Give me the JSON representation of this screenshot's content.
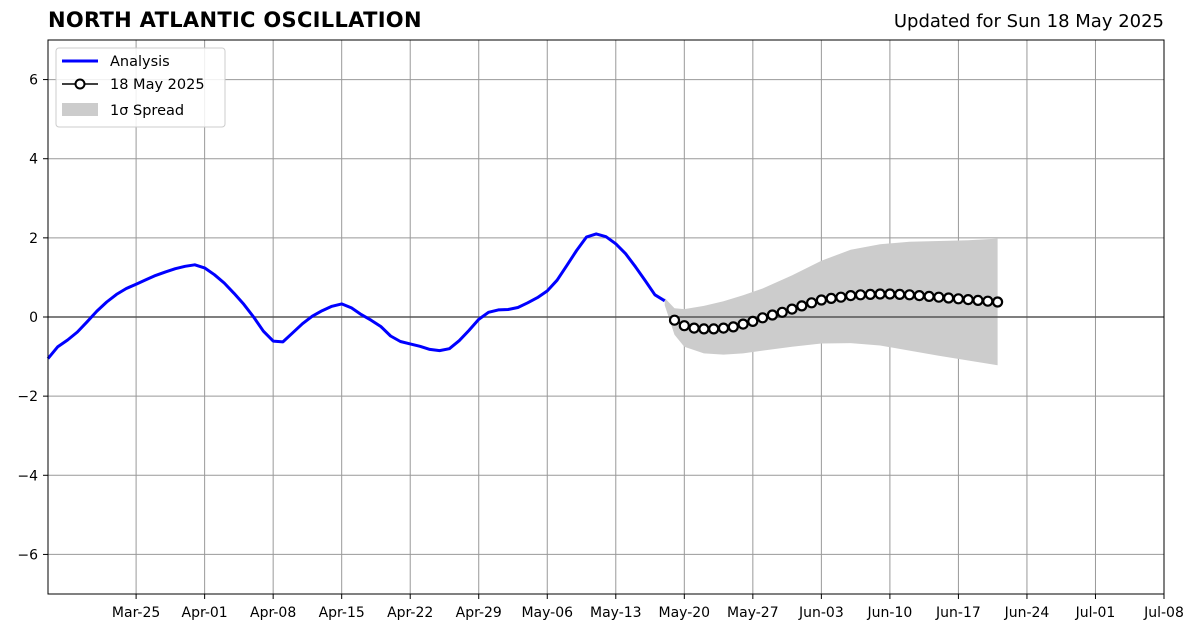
{
  "header": {
    "title": "NORTH ATLANTIC OSCILLATION",
    "updated": "Updated for Sun 18 May 2025"
  },
  "chart_data": {
    "type": "line",
    "title": "NORTH ATLANTIC OSCILLATION",
    "subtitle": "Updated for Sun 18 May 2025",
    "xlabel": "",
    "ylabel": "",
    "xlim": [
      "2025-03-16",
      "2025-07-08"
    ],
    "ylim": [
      -7,
      7
    ],
    "grid": true,
    "legend_position": "top-left",
    "x_tick_labels": [
      "Mar-25",
      "Apr-01",
      "Apr-08",
      "Apr-15",
      "Apr-22",
      "Apr-29",
      "May-06",
      "May-13",
      "May-20",
      "May-27",
      "Jun-03",
      "Jun-10",
      "Jun-17",
      "Jun-24",
      "Jul-01",
      "Jul-08"
    ],
    "x_ticks": [
      "2025-03-25",
      "2025-04-01",
      "2025-04-08",
      "2025-04-15",
      "2025-04-22",
      "2025-04-29",
      "2025-05-06",
      "2025-05-13",
      "2025-05-20",
      "2025-05-27",
      "2025-06-03",
      "2025-06-10",
      "2025-06-17",
      "2025-06-24",
      "2025-07-01",
      "2025-07-08"
    ],
    "y_ticks": [
      6,
      4,
      2,
      0,
      -2,
      -4,
      -6
    ],
    "y_tick_labels": [
      "6",
      "4",
      "2",
      "0",
      "−2",
      "−4",
      "−6"
    ],
    "series": [
      {
        "name": "Analysis",
        "color": "#0000ff",
        "x": [
          "2025-03-16",
          "2025-03-17",
          "2025-03-18",
          "2025-03-19",
          "2025-03-20",
          "2025-03-21",
          "2025-03-22",
          "2025-03-23",
          "2025-03-24",
          "2025-03-25",
          "2025-03-26",
          "2025-03-27",
          "2025-03-28",
          "2025-03-29",
          "2025-03-30",
          "2025-03-31",
          "2025-04-01",
          "2025-04-02",
          "2025-04-03",
          "2025-04-04",
          "2025-04-05",
          "2025-04-06",
          "2025-04-07",
          "2025-04-08",
          "2025-04-09",
          "2025-04-10",
          "2025-04-11",
          "2025-04-12",
          "2025-04-13",
          "2025-04-14",
          "2025-04-15",
          "2025-04-16",
          "2025-04-17",
          "2025-04-18",
          "2025-04-19",
          "2025-04-20",
          "2025-04-21",
          "2025-04-22",
          "2025-04-23",
          "2025-04-24",
          "2025-04-25",
          "2025-04-26",
          "2025-04-27",
          "2025-04-28",
          "2025-04-29",
          "2025-04-30",
          "2025-05-01",
          "2025-05-02",
          "2025-05-03",
          "2025-05-04",
          "2025-05-05",
          "2025-05-06",
          "2025-05-07",
          "2025-05-08",
          "2025-05-09",
          "2025-05-10",
          "2025-05-11",
          "2025-05-12",
          "2025-05-13",
          "2025-05-14",
          "2025-05-15",
          "2025-05-16",
          "2025-05-17",
          "2025-05-18"
        ],
        "y": [
          -1.05,
          -0.75,
          -0.58,
          -0.38,
          -0.12,
          0.15,
          0.38,
          0.57,
          0.72,
          0.83,
          0.94,
          1.05,
          1.14,
          1.22,
          1.28,
          1.32,
          1.24,
          1.07,
          0.86,
          0.6,
          0.32,
          0.0,
          -0.36,
          -0.61,
          -0.63,
          -0.4,
          -0.17,
          0.02,
          0.16,
          0.27,
          0.33,
          0.23,
          0.06,
          -0.08,
          -0.24,
          -0.48,
          -0.62,
          -0.68,
          -0.74,
          -0.82,
          -0.85,
          -0.8,
          -0.6,
          -0.34,
          -0.06,
          0.12,
          0.18,
          0.19,
          0.24,
          0.36,
          0.49,
          0.66,
          0.93,
          1.3,
          1.68,
          2.02,
          2.1,
          2.03,
          1.85,
          1.6,
          1.27,
          0.92,
          0.56,
          0.41
        ]
      },
      {
        "name": "18 May 2025",
        "color": "#000000",
        "marker": "open-circle",
        "x": [
          "2025-05-19",
          "2025-05-20",
          "2025-05-21",
          "2025-05-22",
          "2025-05-23",
          "2025-05-24",
          "2025-05-25",
          "2025-05-26",
          "2025-05-27",
          "2025-05-28",
          "2025-05-29",
          "2025-05-30",
          "2025-05-31",
          "2025-06-01",
          "2025-06-02",
          "2025-06-03",
          "2025-06-04",
          "2025-06-05",
          "2025-06-06",
          "2025-06-07",
          "2025-06-08",
          "2025-06-09",
          "2025-06-10",
          "2025-06-11",
          "2025-06-12",
          "2025-06-13",
          "2025-06-14",
          "2025-06-15",
          "2025-06-16",
          "2025-06-17",
          "2025-06-18",
          "2025-06-19",
          "2025-06-20",
          "2025-06-21"
        ],
        "y": [
          -0.08,
          -0.22,
          -0.28,
          -0.3,
          -0.3,
          -0.28,
          -0.25,
          -0.18,
          -0.11,
          -0.02,
          0.05,
          0.12,
          0.2,
          0.28,
          0.36,
          0.43,
          0.47,
          0.5,
          0.54,
          0.56,
          0.57,
          0.58,
          0.58,
          0.57,
          0.56,
          0.54,
          0.52,
          0.5,
          0.48,
          0.46,
          0.44,
          0.42,
          0.4,
          0.38
        ]
      },
      {
        "name": "1σ Spread",
        "color": "#cccccc",
        "type": "area",
        "x": [
          "2025-05-18",
          "2025-05-19",
          "2025-05-20",
          "2025-05-22",
          "2025-05-24",
          "2025-05-26",
          "2025-05-28",
          "2025-05-31",
          "2025-06-03",
          "2025-06-06",
          "2025-06-09",
          "2025-06-12",
          "2025-06-15",
          "2025-06-18",
          "2025-06-21"
        ],
        "upper": [
          0.48,
          0.22,
          0.2,
          0.28,
          0.4,
          0.55,
          0.72,
          1.05,
          1.42,
          1.7,
          1.84,
          1.9,
          1.92,
          1.94,
          1.98
        ],
        "lower": [
          0.3,
          -0.45,
          -0.75,
          -0.92,
          -0.95,
          -0.92,
          -0.85,
          -0.75,
          -0.67,
          -0.66,
          -0.72,
          -0.85,
          -0.98,
          -1.1,
          -1.22
        ]
      }
    ],
    "reference_line": 0
  }
}
